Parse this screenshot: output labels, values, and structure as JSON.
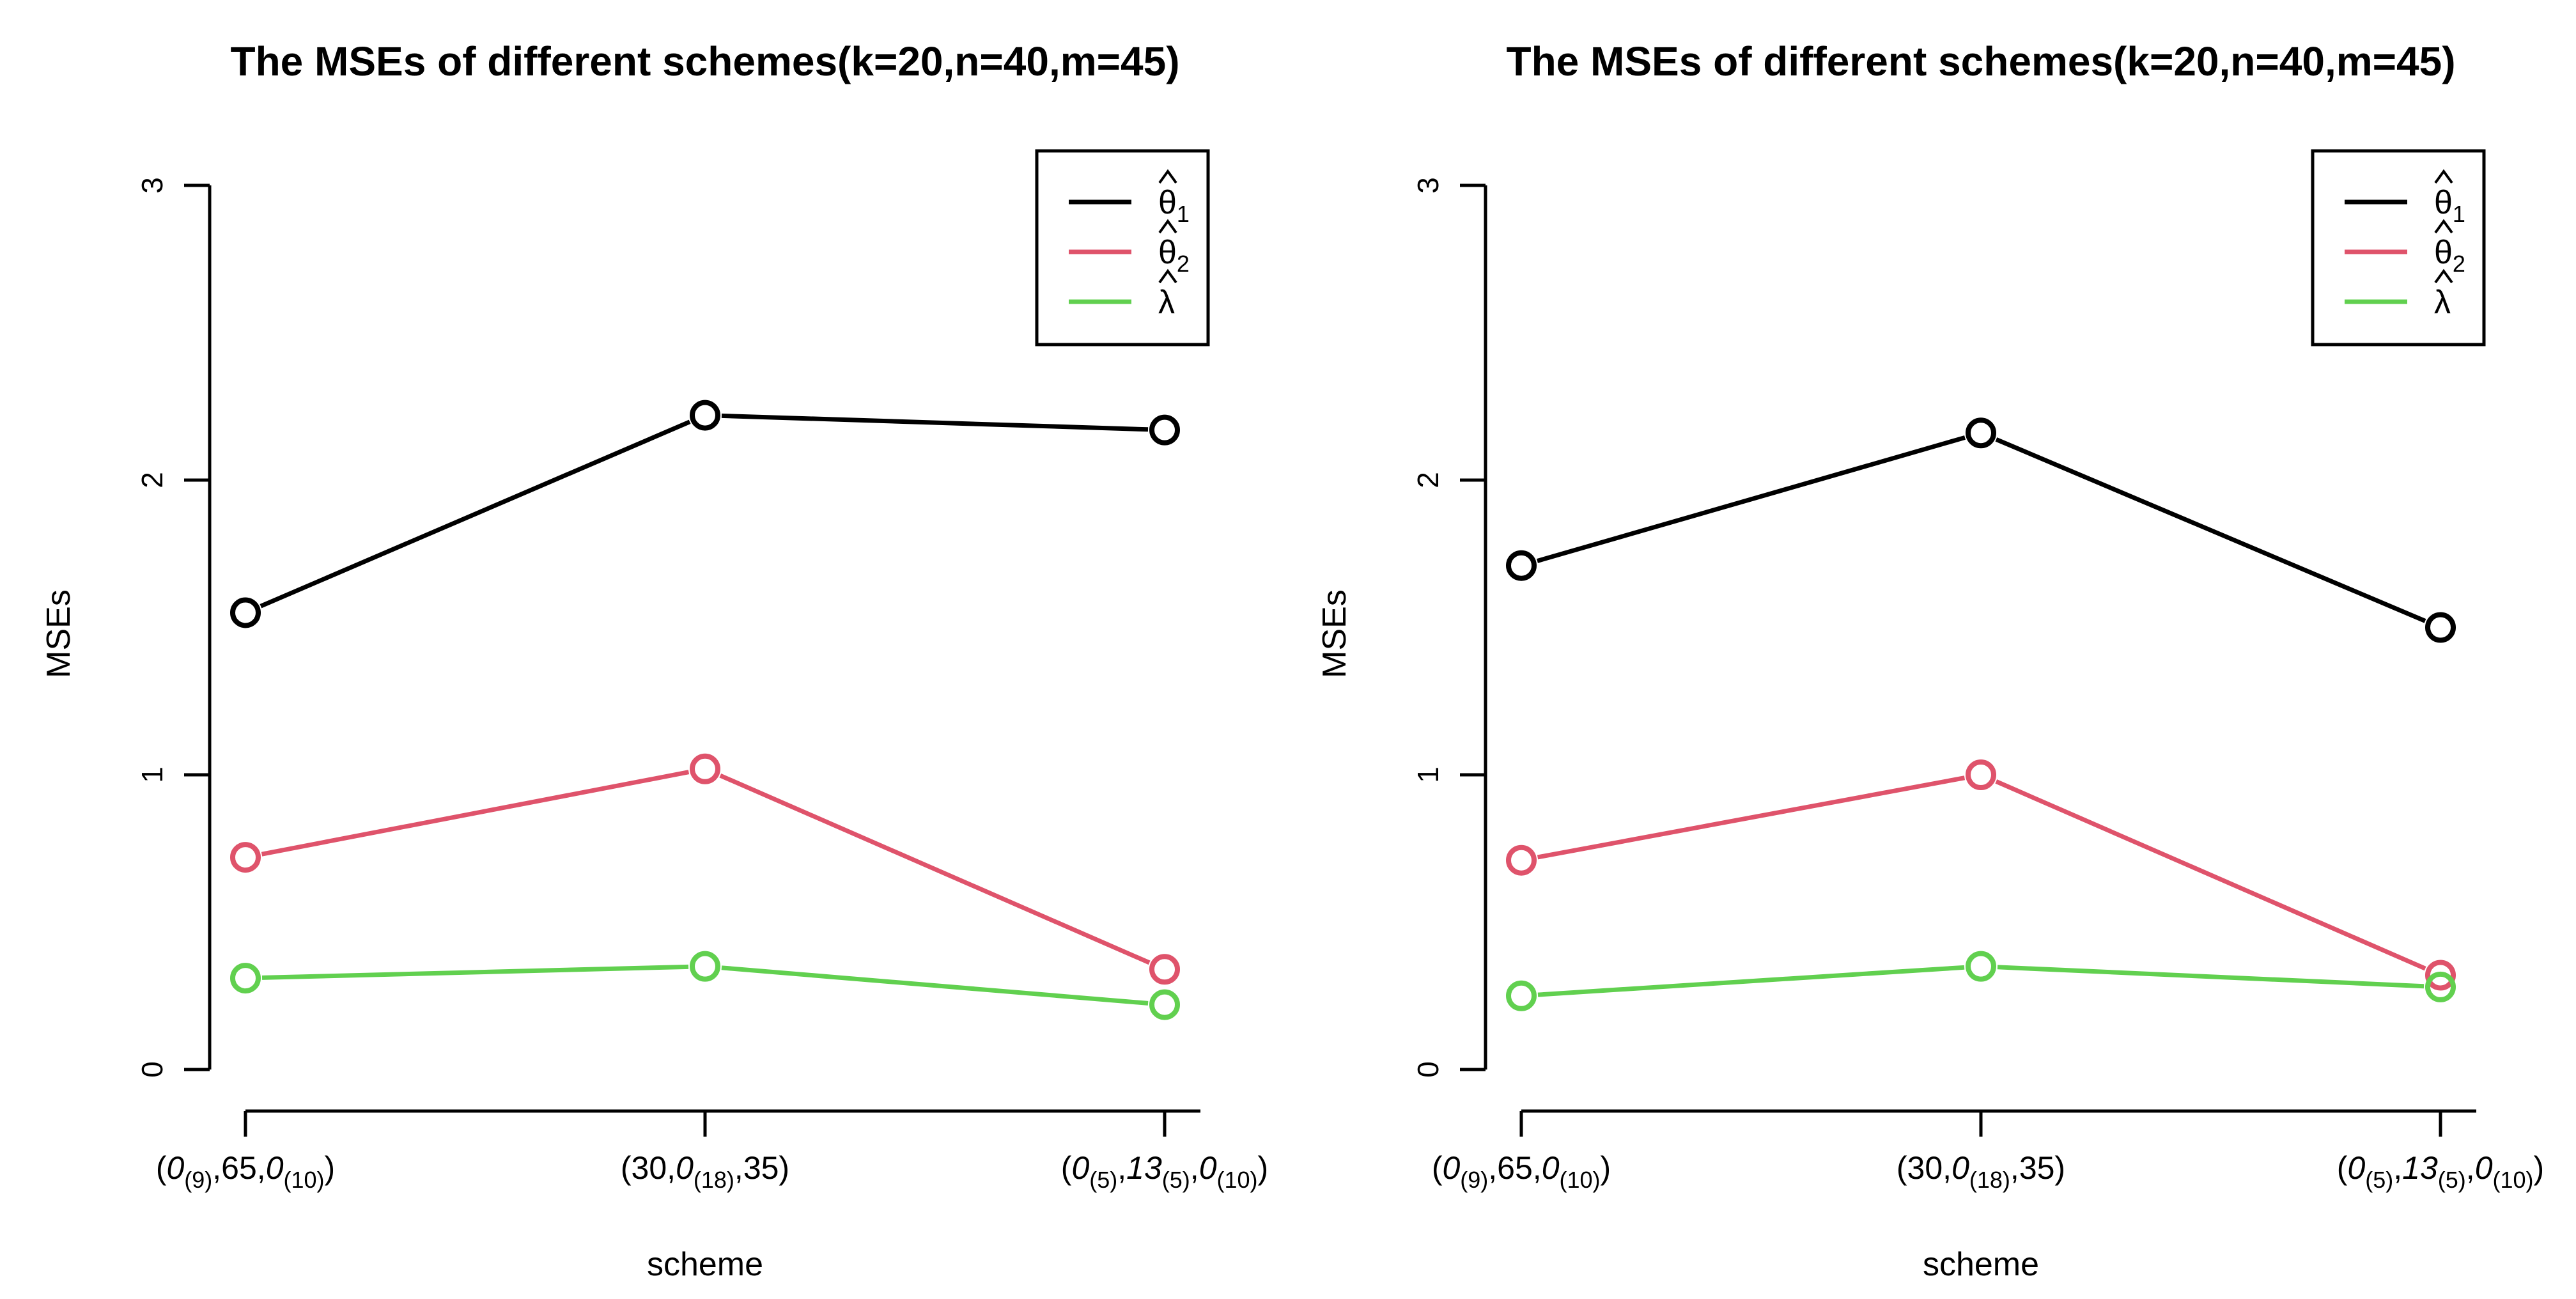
{
  "colors": {
    "theta1": "#000000",
    "theta2": "#DF536B",
    "lambda": "#61D04F",
    "axis": "#000000",
    "background": "#FFFFFF"
  },
  "chart_data": [
    {
      "type": "line",
      "title": "The MSEs of different schemes(k=20,n=40,m=45)",
      "xlabel": "scheme",
      "ylabel": "MSEs",
      "ylim": [
        0,
        3
      ],
      "yticks": [
        "0",
        "1",
        "2",
        "3"
      ],
      "categories": [
        {
          "parts": [
            [
              "(",
              "n"
            ],
            [
              "0",
              "i"
            ],
            [
              "(9)",
              "s"
            ],
            [
              ",65,",
              "n"
            ],
            [
              "0",
              "i"
            ],
            [
              "(10)",
              "s"
            ],
            [
              ")",
              "n"
            ]
          ]
        },
        {
          "parts": [
            [
              "(30,",
              "n"
            ],
            [
              "0",
              "i"
            ],
            [
              "(18)",
              "s"
            ],
            [
              ",35)",
              "n"
            ]
          ]
        },
        {
          "parts": [
            [
              "(",
              "n"
            ],
            [
              "0",
              "i"
            ],
            [
              "(5)",
              "s"
            ],
            [
              ",",
              "n"
            ],
            [
              "13",
              "i"
            ],
            [
              "(5)",
              "s"
            ],
            [
              ",",
              "n"
            ],
            [
              "0",
              "i"
            ],
            [
              "(10)",
              "s"
            ],
            [
              ")",
              "n"
            ]
          ]
        }
      ],
      "series": [
        {
          "name": "theta1",
          "legend": {
            "base": "θ",
            "sub": "1"
          },
          "color": "#000000",
          "values": [
            1.55,
            2.22,
            2.17
          ]
        },
        {
          "name": "theta2",
          "legend": {
            "base": "θ",
            "sub": "2"
          },
          "color": "#DF536B",
          "values": [
            0.72,
            1.02,
            0.34
          ]
        },
        {
          "name": "lambda",
          "legend": {
            "base": "λ",
            "sub": ""
          },
          "color": "#61D04F",
          "values": [
            0.31,
            0.35,
            0.22
          ]
        }
      ],
      "legend_position": "top-right"
    },
    {
      "type": "line",
      "title": "The MSEs of different schemes(k=20,n=40,m=45)",
      "xlabel": "scheme",
      "ylabel": "MSEs",
      "ylim": [
        0,
        3
      ],
      "yticks": [
        "0",
        "1",
        "2",
        "3"
      ],
      "categories": [
        {
          "parts": [
            [
              "(",
              "n"
            ],
            [
              "0",
              "i"
            ],
            [
              "(9)",
              "s"
            ],
            [
              ",65,",
              "n"
            ],
            [
              "0",
              "i"
            ],
            [
              "(10)",
              "s"
            ],
            [
              ")",
              "n"
            ]
          ]
        },
        {
          "parts": [
            [
              "(30,",
              "n"
            ],
            [
              "0",
              "i"
            ],
            [
              "(18)",
              "s"
            ],
            [
              ",35)",
              "n"
            ]
          ]
        },
        {
          "parts": [
            [
              "(",
              "n"
            ],
            [
              "0",
              "i"
            ],
            [
              "(5)",
              "s"
            ],
            [
              ",",
              "n"
            ],
            [
              "13",
              "i"
            ],
            [
              "(5)",
              "s"
            ],
            [
              ",",
              "n"
            ],
            [
              "0",
              "i"
            ],
            [
              "(10)",
              "s"
            ],
            [
              ")",
              "n"
            ]
          ]
        }
      ],
      "series": [
        {
          "name": "theta1",
          "legend": {
            "base": "θ",
            "sub": "1"
          },
          "color": "#000000",
          "values": [
            1.71,
            2.16,
            1.5
          ]
        },
        {
          "name": "theta2",
          "legend": {
            "base": "θ",
            "sub": "2"
          },
          "color": "#DF536B",
          "values": [
            0.71,
            1.0,
            0.32
          ]
        },
        {
          "name": "lambda",
          "legend": {
            "base": "λ",
            "sub": ""
          },
          "color": "#61D04F",
          "values": [
            0.25,
            0.35,
            0.28
          ]
        }
      ],
      "legend_position": "top-right"
    }
  ]
}
